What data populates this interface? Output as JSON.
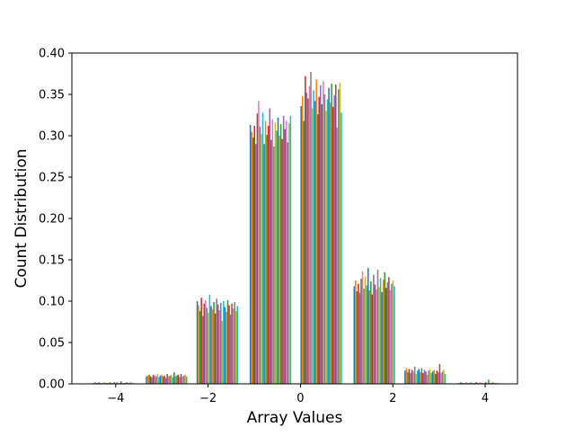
{
  "chart_data": {
    "type": "bar",
    "title": "",
    "xlabel": "Array Values",
    "ylabel": "Count Distribution",
    "xlim": [
      -4.95,
      4.7
    ],
    "ylim": [
      0.0,
      0.4
    ],
    "xticks": [
      -4,
      -2,
      0,
      2,
      4
    ],
    "xtick_labels": [
      "−4",
      "−2",
      "0",
      "2",
      "4"
    ],
    "yticks": [
      0.0,
      0.05,
      0.1,
      0.15,
      0.2,
      0.25,
      0.3,
      0.35,
      0.4
    ],
    "ytick_labels": [
      "0.00",
      "0.05",
      "0.10",
      "0.15",
      "0.20",
      "0.25",
      "0.30",
      "0.35",
      "0.40"
    ],
    "grid": false,
    "bins": [
      {
        "start": -4.5,
        "end": -3.6,
        "values": [
          0.001,
          0.002,
          0.001,
          0.001,
          0.002,
          0.001,
          0.001,
          0.001,
          0.002,
          0.001,
          0.001,
          0.001,
          0.002,
          0.001,
          0.001,
          0.002,
          0.001,
          0.002,
          0.001,
          0.001,
          0.003,
          0.001,
          0.001,
          0.001,
          0.002,
          0.001,
          0.001,
          0.002,
          0.001,
          0.001
        ]
      },
      {
        "start": -3.35,
        "end": -2.45,
        "values": [
          0.009,
          0.01,
          0.011,
          0.009,
          0.008,
          0.011,
          0.01,
          0.009,
          0.012,
          0.008,
          0.01,
          0.011,
          0.009,
          0.01,
          0.007,
          0.012,
          0.009,
          0.01,
          0.011,
          0.008,
          0.014,
          0.009,
          0.01,
          0.011,
          0.008,
          0.012,
          0.009,
          0.01,
          0.011,
          0.009
        ]
      },
      {
        "start": -2.25,
        "end": -1.35,
        "values": [
          0.1,
          0.095,
          0.088,
          0.104,
          0.082,
          0.097,
          0.101,
          0.092,
          0.086,
          0.108,
          0.094,
          0.09,
          0.099,
          0.085,
          0.103,
          0.096,
          0.089,
          0.098,
          0.076,
          0.1,
          0.093,
          0.087,
          0.101,
          0.095,
          0.084,
          0.097,
          0.091,
          0.099,
          0.088,
          0.094
        ]
      },
      {
        "start": -1.1,
        "end": -0.2,
        "values": [
          0.313,
          0.305,
          0.298,
          0.312,
          0.29,
          0.327,
          0.342,
          0.311,
          0.302,
          0.328,
          0.29,
          0.318,
          0.301,
          0.312,
          0.333,
          0.295,
          0.32,
          0.287,
          0.316,
          0.306,
          0.322,
          0.3,
          0.314,
          0.296,
          0.324,
          0.308,
          0.318,
          0.292,
          0.315,
          0.324
        ]
      },
      {
        "start": 0.0,
        "end": 0.9,
        "values": [
          0.336,
          0.348,
          0.318,
          0.372,
          0.352,
          0.345,
          0.36,
          0.377,
          0.333,
          0.355,
          0.342,
          0.368,
          0.326,
          0.347,
          0.361,
          0.338,
          0.366,
          0.35,
          0.33,
          0.344,
          0.358,
          0.34,
          0.363,
          0.335,
          0.349,
          0.362,
          0.31,
          0.356,
          0.364,
          0.328
        ]
      },
      {
        "start": 1.15,
        "end": 2.05,
        "values": [
          0.118,
          0.125,
          0.112,
          0.121,
          0.11,
          0.127,
          0.136,
          0.115,
          0.13,
          0.119,
          0.14,
          0.113,
          0.124,
          0.108,
          0.132,
          0.12,
          0.114,
          0.138,
          0.117,
          0.128,
          0.111,
          0.126,
          0.135,
          0.116,
          0.123,
          0.129,
          0.113,
          0.121,
          0.125,
          0.118
        ]
      },
      {
        "start": 2.25,
        "end": 3.15,
        "values": [
          0.016,
          0.019,
          0.014,
          0.018,
          0.013,
          0.017,
          0.015,
          0.021,
          0.012,
          0.016,
          0.018,
          0.014,
          0.019,
          0.013,
          0.017,
          0.015,
          0.011,
          0.016,
          0.018,
          0.013,
          0.015,
          0.017,
          0.012,
          0.016,
          0.014,
          0.024,
          0.013,
          0.015,
          0.017,
          0.012
        ]
      },
      {
        "start": 3.4,
        "end": 4.3,
        "values": [
          0.001,
          0.001,
          0.002,
          0.001,
          0.001,
          0.001,
          0.002,
          0.001,
          0.001,
          0.002,
          0.001,
          0.001,
          0.001,
          0.002,
          0.001,
          0.001,
          0.002,
          0.001,
          0.001,
          0.001,
          0.002,
          0.001,
          0.005,
          0.001,
          0.001,
          0.002,
          0.001,
          0.001,
          0.001,
          0.001
        ]
      }
    ]
  },
  "colors": {
    "series": [
      "#1f77b4",
      "#ff7f0e",
      "#2ca02c",
      "#d62728",
      "#9467bd",
      "#8c564b",
      "#e377c2",
      "#7f7f7f",
      "#bcbd22",
      "#17becf"
    ],
    "axis": "#000000",
    "background": "#ffffff"
  }
}
